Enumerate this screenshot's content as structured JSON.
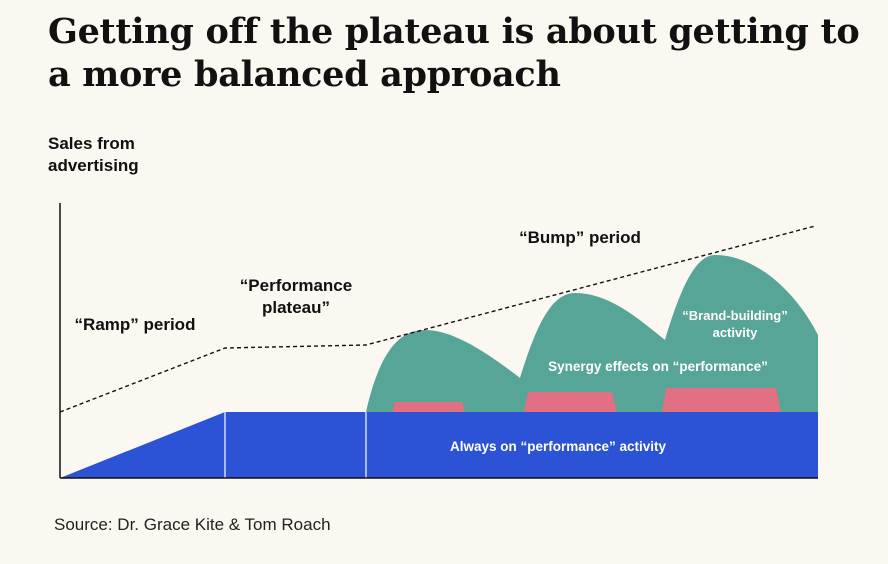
{
  "title": "Getting off the plateau is about getting to a more balanced approach",
  "y_axis_label": "Sales from\nadvertising",
  "source": "Source: Dr. Grace Kite & Tom Roach",
  "periods": {
    "ramp": "“Ramp” period",
    "plateau_line1": "“Performance",
    "plateau_line2": "plateau”",
    "bump": "“Bump” period"
  },
  "regions": {
    "brand_line1": "“Brand-building”",
    "brand_line2": "activity",
    "synergy": "Synergy effects on “performance”",
    "always_on": "Always on “performance” activity"
  },
  "colors": {
    "background": "#fbf8f1",
    "always_on": "#2c52d6",
    "brand_building": "#57a596",
    "synergy": "#e17083",
    "trend_line": "#111111"
  }
}
